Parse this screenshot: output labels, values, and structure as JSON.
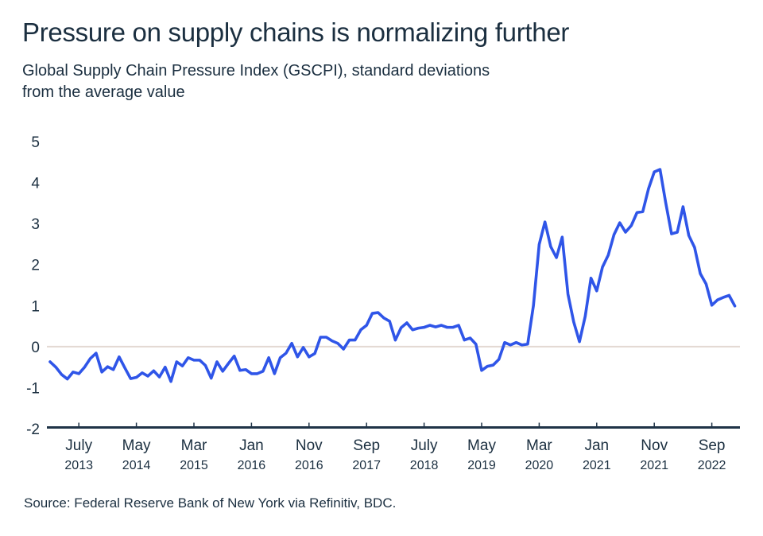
{
  "chart_data": {
    "type": "line",
    "title": "Pressure on supply chains is normalizing further",
    "subtitle_line1": "Global Supply Chain Pressure Index (GSCPI), standard deviations",
    "subtitle_line2": "from the average value",
    "source": "Source: Federal Reserve Bank of New York via Refinitiv, BDC.",
    "xlabel": "",
    "ylabel": "",
    "ylim": [
      -2,
      5
    ],
    "yticks": [
      5,
      4,
      3,
      2,
      1,
      0,
      -1,
      -2
    ],
    "grid": "zero line only",
    "legend": "none",
    "x_start": "Feb 2013",
    "x_end": "Jan 2023",
    "frequency": "monthly",
    "xticks": [
      {
        "month": "July",
        "year": "2013",
        "index": 5
      },
      {
        "month": "May",
        "year": "2014",
        "index": 15
      },
      {
        "month": "Mar",
        "year": "2015",
        "index": 25
      },
      {
        "month": "Jan",
        "year": "2016",
        "index": 35
      },
      {
        "month": "Nov",
        "year": "2016",
        "index": 45
      },
      {
        "month": "Sep",
        "year": "2017",
        "index": 55
      },
      {
        "month": "July",
        "year": "2018",
        "index": 65
      },
      {
        "month": "May",
        "year": "2019",
        "index": 75
      },
      {
        "month": "Mar",
        "year": "2020",
        "index": 85
      },
      {
        "month": "Jan",
        "year": "2021",
        "index": 95
      },
      {
        "month": "Nov",
        "year": "2021",
        "index": 105
      },
      {
        "month": "Sep",
        "year": "2022",
        "index": 115
      }
    ],
    "series": [
      {
        "name": "GSCPI",
        "color": "#2f55e8",
        "values": [
          -0.37,
          -0.5,
          -0.68,
          -0.79,
          -0.62,
          -0.66,
          -0.5,
          -0.29,
          -0.16,
          -0.62,
          -0.49,
          -0.56,
          -0.25,
          -0.52,
          -0.78,
          -0.75,
          -0.64,
          -0.72,
          -0.59,
          -0.74,
          -0.5,
          -0.85,
          -0.37,
          -0.47,
          -0.27,
          -0.33,
          -0.33,
          -0.46,
          -0.77,
          -0.37,
          -0.6,
          -0.41,
          -0.23,
          -0.58,
          -0.56,
          -0.66,
          -0.66,
          -0.6,
          -0.27,
          -0.66,
          -0.27,
          -0.16,
          0.08,
          -0.25,
          -0.02,
          -0.25,
          -0.17,
          0.23,
          0.23,
          0.14,
          0.08,
          -0.06,
          0.16,
          0.16,
          0.41,
          0.52,
          0.81,
          0.83,
          0.7,
          0.62,
          0.16,
          0.46,
          0.58,
          0.41,
          0.45,
          0.47,
          0.52,
          0.48,
          0.52,
          0.47,
          0.47,
          0.52,
          0.16,
          0.21,
          0.06,
          -0.58,
          -0.48,
          -0.45,
          -0.31,
          0.1,
          0.04,
          0.1,
          0.04,
          0.06,
          1.0,
          2.49,
          3.04,
          2.44,
          2.17,
          2.67,
          1.28,
          0.6,
          0.12,
          0.74,
          1.67,
          1.36,
          1.94,
          2.23,
          2.73,
          3.02,
          2.79,
          2.95,
          3.27,
          3.29,
          3.85,
          4.26,
          4.32,
          3.5,
          2.75,
          2.79,
          3.41,
          2.71,
          2.42,
          1.78,
          1.53,
          1.01,
          1.14,
          1.2,
          1.25,
          0.99
        ]
      }
    ],
    "colors": {
      "line": "#2f55e8",
      "axis": "#1f3347",
      "zero_line": "#e3d9d3",
      "text": "#1b2f40"
    }
  }
}
